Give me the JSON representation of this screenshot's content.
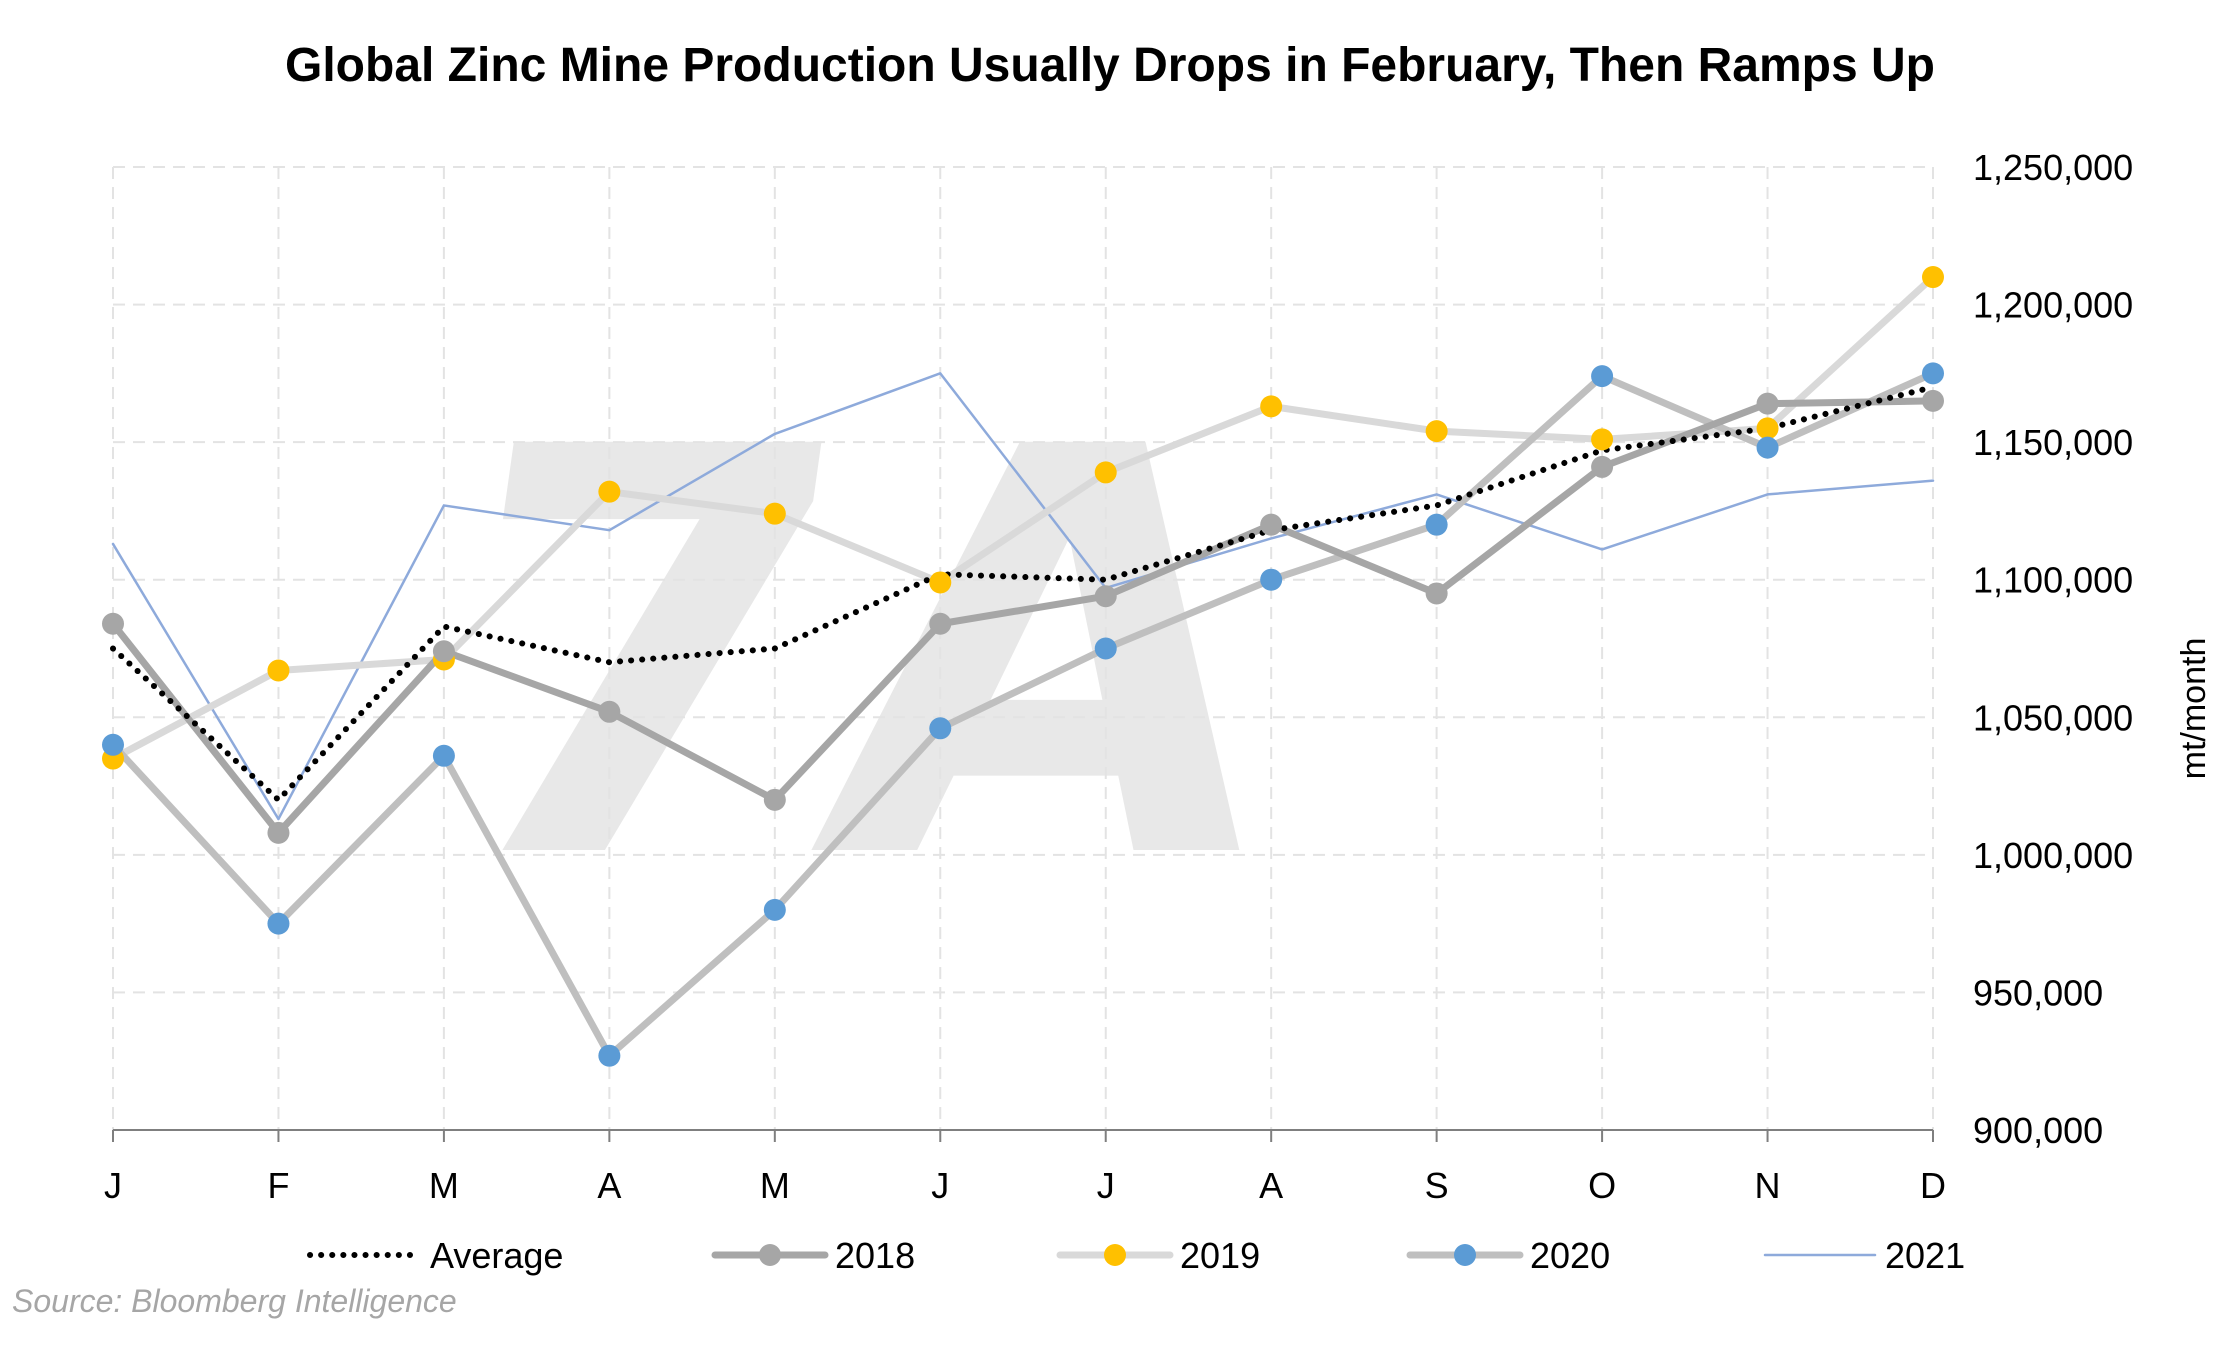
{
  "title": "Global Zinc Mine Production Usually Drops in February, Then Ramps Up",
  "source": "Source: Bloomberg Intelligence",
  "watermark": "7A",
  "chart_data": {
    "type": "line",
    "categories": [
      "J",
      "F",
      "M",
      "A",
      "M",
      "J",
      "J",
      "A",
      "S",
      "O",
      "N",
      "D"
    ],
    "ylabel": "mt/month",
    "ylabel_position": "right",
    "ylim": [
      900000,
      1250000
    ],
    "yticks": [
      900000,
      950000,
      1000000,
      1050000,
      1100000,
      1150000,
      1200000,
      1250000
    ],
    "ytick_labels": [
      "900,000",
      "950,000",
      "1,000,000",
      "1,050,000",
      "1,100,000",
      "1,150,000",
      "1,200,000",
      "1,250,000"
    ],
    "grid": true,
    "legend_position": "bottom",
    "series": [
      {
        "name": "Average",
        "style": "dotted",
        "color": "#000000",
        "marker": "none",
        "values": [
          1075000,
          1020000,
          1083000,
          1070000,
          1075000,
          1102000,
          1100000,
          1118000,
          1127000,
          1147000,
          1155000,
          1170000
        ]
      },
      {
        "name": "2018",
        "style": "solid",
        "color": "#a6a6a6",
        "marker": "circle",
        "marker_color": "#a6a6a6",
        "values": [
          1084000,
          1008000,
          1074000,
          1052000,
          1020000,
          1084000,
          1094000,
          1120000,
          1095000,
          1141000,
          1164000,
          1165000
        ]
      },
      {
        "name": "2019",
        "style": "solid",
        "color": "#d9d9d9",
        "marker": "circle",
        "marker_color": "#ffc000",
        "values": [
          1035000,
          1067000,
          1071000,
          1132000,
          1124000,
          1099000,
          1139000,
          1163000,
          1154000,
          1151000,
          1155000,
          1210000
        ]
      },
      {
        "name": "2020",
        "style": "solid",
        "color": "#bfbfbf",
        "marker": "circle",
        "marker_color": "#5b9bd5",
        "values": [
          1040000,
          975000,
          1036000,
          927000,
          980000,
          1046000,
          1075000,
          1100000,
          1120000,
          1174000,
          1148000,
          1175000
        ]
      },
      {
        "name": "2021",
        "style": "solid",
        "color": "#8eaadb",
        "marker": "none",
        "values": [
          1113000,
          1013000,
          1127000,
          1118000,
          1153000,
          1175000,
          1097000,
          1115000,
          1131000,
          1111000,
          1131000,
          1136000
        ]
      }
    ]
  }
}
